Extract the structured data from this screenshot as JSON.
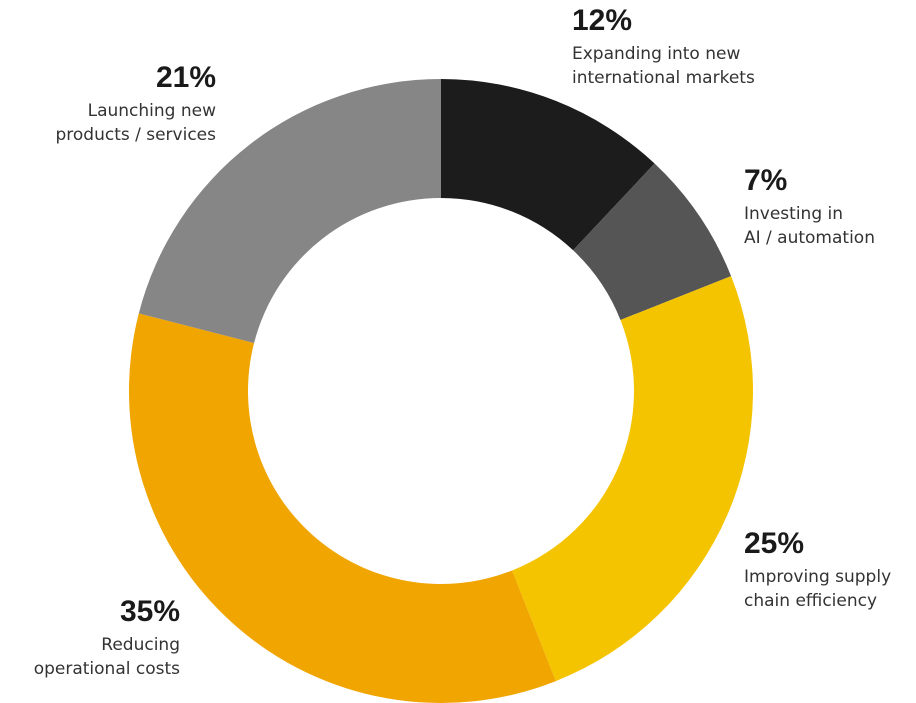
{
  "chart_data": {
    "type": "pie",
    "style": "donut",
    "title": "",
    "slices": [
      {
        "value": 12,
        "label": "12%",
        "name": "Expanding into new\ninternational markets",
        "color": "#1c1c1c"
      },
      {
        "value": 7,
        "label": "7%",
        "name": "Investing in\nAI / automation",
        "color": "#555555"
      },
      {
        "value": 25,
        "label": "25%",
        "name": "Improving supply\nchain efficiency",
        "color": "#f5c400"
      },
      {
        "value": 35,
        "label": "35%",
        "name": "Reducing\noperational costs",
        "color": "#f0a500"
      },
      {
        "value": 21,
        "label": "21%",
        "name": "Launching new\nproducts / services",
        "color": "#868686"
      }
    ],
    "start_angle_deg": 0,
    "direction": "clockwise",
    "legend": "none"
  }
}
